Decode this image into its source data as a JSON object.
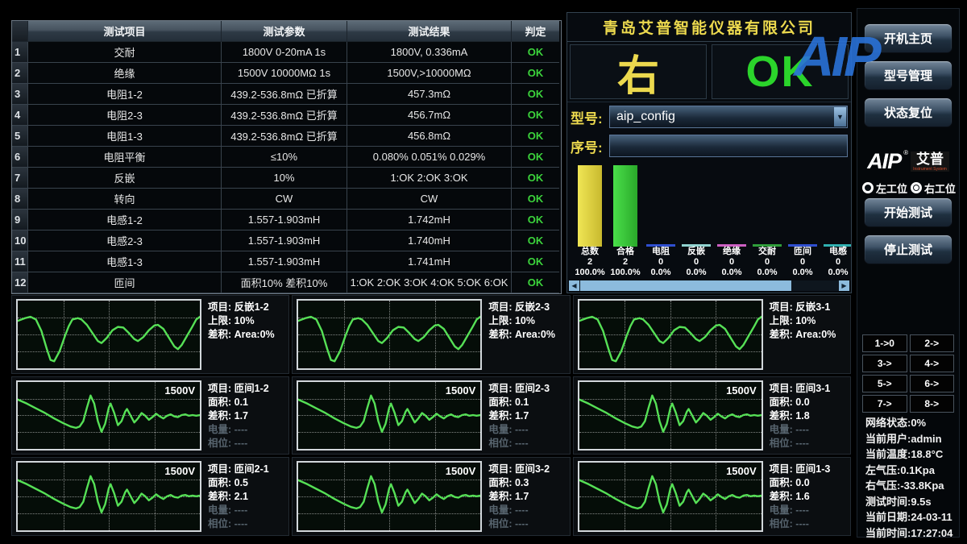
{
  "table": {
    "headers": [
      "测试项目",
      "测试参数",
      "测试结果",
      "判定"
    ],
    "rows": [
      {
        "num": "1",
        "item": "交耐",
        "param": "1800V 0-20mA 1s",
        "result": "1800V, 0.336mA",
        "judge": "OK"
      },
      {
        "num": "2",
        "item": "绝缘",
        "param": "1500V 10000MΩ 1s",
        "result": "1500V,>10000MΩ",
        "judge": "OK"
      },
      {
        "num": "3",
        "item": "电阻1-2",
        "param": "439.2-536.8mΩ 已折算",
        "result": "457.3mΩ",
        "judge": "OK"
      },
      {
        "num": "4",
        "item": "电阻2-3",
        "param": "439.2-536.8mΩ 已折算",
        "result": "456.7mΩ",
        "judge": "OK"
      },
      {
        "num": "5",
        "item": "电阻1-3",
        "param": "439.2-536.8mΩ 已折算",
        "result": "456.8mΩ",
        "judge": "OK"
      },
      {
        "num": "6",
        "item": "电阻平衡",
        "param": "≤10%",
        "result": "0.080% 0.051% 0.029%",
        "judge": "OK"
      },
      {
        "num": "7",
        "item": "反嵌",
        "param": "10%",
        "result": "1:OK 2:OK 3:OK",
        "judge": "OK"
      },
      {
        "num": "8",
        "item": "转向",
        "param": "CW",
        "result": "CW",
        "judge": "OK"
      },
      {
        "num": "9",
        "item": "电感1-2",
        "param": "1.557-1.903mH",
        "result": "1.742mH",
        "judge": "OK"
      },
      {
        "num": "10",
        "item": "电感2-3",
        "param": "1.557-1.903mH",
        "result": "1.740mH",
        "judge": "OK"
      },
      {
        "num": "11",
        "item": "电感1-3",
        "param": "1.557-1.903mH",
        "result": "1.741mH",
        "judge": "OK"
      },
      {
        "num": "12",
        "item": "匝间",
        "param": "面积10% 差积10%",
        "result": "1:OK 2:OK 3:OK 4:OK 5:OK 6:OK",
        "judge": "OK"
      }
    ]
  },
  "panel": {
    "company": "青岛艾普智能仪器有限公司",
    "station": "右",
    "result": "OK",
    "model_label": "型号:",
    "model_value": "aip_config",
    "serial_label": "序号:",
    "watermark": "AIP",
    "accent_yellow": "#ecd94e",
    "accent_green": "#2bd42b"
  },
  "stats": {
    "columns": [
      {
        "label": "总数",
        "count": "2",
        "percent": "100.0%",
        "color": "#f0e655",
        "color2": "#c8b92e",
        "full": true
      },
      {
        "label": "合格",
        "count": "2",
        "percent": "100.0%",
        "color": "#4ae04a",
        "color2": "#2aa82a",
        "full": true
      },
      {
        "label": "电阻",
        "count": "0",
        "percent": "0.0%",
        "color": "#2f4fd0",
        "full": false
      },
      {
        "label": "反嵌",
        "count": "0",
        "percent": "0.0%",
        "color": "#8fd2cf",
        "full": false
      },
      {
        "label": "绝缘",
        "count": "0",
        "percent": "0.0%",
        "color": "#cc5fc2",
        "full": false
      },
      {
        "label": "交耐",
        "count": "0",
        "percent": "0.0%",
        "color": "#2f9e3a",
        "full": false
      },
      {
        "label": "匝间",
        "count": "0",
        "percent": "0.0%",
        "color": "#2f4fd0",
        "full": false
      },
      {
        "label": "电感",
        "count": "0",
        "percent": "0.0%",
        "color": "#2fb0b0",
        "full": false
      }
    ]
  },
  "sidebar": {
    "buttons_top": [
      {
        "label": "开机主页",
        "name": "home-button"
      },
      {
        "label": "型号管理",
        "name": "model-manage-button"
      },
      {
        "label": "状态复位",
        "name": "status-reset-button"
      }
    ],
    "logo": {
      "aip": "AIP",
      "reg": "®",
      "cn": "艾普",
      "sub": "Instrument System"
    },
    "radios": [
      {
        "label": "左工位",
        "selected": false,
        "name": "station-radio-left"
      },
      {
        "label": "右工位",
        "selected": true,
        "name": "station-radio-right"
      }
    ],
    "buttons_test": [
      {
        "label": "开始测试",
        "name": "start-test-button"
      },
      {
        "label": "停止测试",
        "name": "stop-test-button"
      }
    ],
    "mapping": [
      "1->0",
      "2->",
      "3->",
      "4->",
      "5->",
      "6->",
      "7->",
      "8->"
    ],
    "status_lines": [
      "网络状态:0%",
      "当前用户:admin",
      "当前温度:18.8°C",
      "左气压:0.1Kpa",
      "右气压:-33.8Kpa",
      "测试时间:9.5s",
      "当前日期:24-03-11",
      "当前时间:17:27:04"
    ]
  },
  "charts": [
    {
      "shape": "fanqian",
      "voltage": "",
      "fields": [
        {
          "k": "项目:",
          "v": "反嵌1-2"
        },
        {
          "k": "上限:",
          "v": "10%"
        },
        {
          "k": "差积:",
          "v": "Area:0%"
        }
      ]
    },
    {
      "shape": "fanqian",
      "voltage": "",
      "fields": [
        {
          "k": "项目:",
          "v": "反嵌2-3"
        },
        {
          "k": "上限:",
          "v": "10%"
        },
        {
          "k": "差积:",
          "v": "Area:0%"
        }
      ]
    },
    {
      "shape": "fanqian",
      "voltage": "",
      "fields": [
        {
          "k": "项目:",
          "v": "反嵌3-1"
        },
        {
          "k": "上限:",
          "v": "10%"
        },
        {
          "k": "差积:",
          "v": "Area:0%"
        }
      ]
    },
    {
      "shape": "zhajian",
      "voltage": "1500V",
      "fields": [
        {
          "k": "项目:",
          "v": "匝间1-2"
        },
        {
          "k": "面积:",
          "v": "0.1"
        },
        {
          "k": "差积:",
          "v": "1.7"
        },
        {
          "k": "电量:",
          "v": "----",
          "dim": true
        },
        {
          "k": "相位:",
          "v": "----",
          "dim": true
        }
      ]
    },
    {
      "shape": "zhajian",
      "voltage": "1500V",
      "fields": [
        {
          "k": "项目:",
          "v": "匝间2-3"
        },
        {
          "k": "面积:",
          "v": "0.1"
        },
        {
          "k": "差积:",
          "v": "1.7"
        },
        {
          "k": "电量:",
          "v": "----",
          "dim": true
        },
        {
          "k": "相位:",
          "v": "----",
          "dim": true
        }
      ]
    },
    {
      "shape": "zhajian",
      "voltage": "1500V",
      "fields": [
        {
          "k": "项目:",
          "v": "匝间3-1"
        },
        {
          "k": "面积:",
          "v": "0.0"
        },
        {
          "k": "差积:",
          "v": "1.8"
        },
        {
          "k": "电量:",
          "v": "----",
          "dim": true
        },
        {
          "k": "相位:",
          "v": "----",
          "dim": true
        }
      ]
    },
    {
      "shape": "zhajian",
      "voltage": "1500V",
      "fields": [
        {
          "k": "项目:",
          "v": "匝间2-1"
        },
        {
          "k": "面积:",
          "v": "0.5"
        },
        {
          "k": "差积:",
          "v": "2.1"
        },
        {
          "k": "电量:",
          "v": "----",
          "dim": true
        },
        {
          "k": "相位:",
          "v": "----",
          "dim": true
        }
      ]
    },
    {
      "shape": "zhajian",
      "voltage": "1500V",
      "fields": [
        {
          "k": "项目:",
          "v": "匝间3-2"
        },
        {
          "k": "面积:",
          "v": "0.3"
        },
        {
          "k": "差积:",
          "v": "1.7"
        },
        {
          "k": "电量:",
          "v": "----",
          "dim": true
        },
        {
          "k": "相位:",
          "v": "----",
          "dim": true
        }
      ]
    },
    {
      "shape": "zhajian",
      "voltage": "1500V",
      "fields": [
        {
          "k": "项目:",
          "v": "匝间1-3"
        },
        {
          "k": "面积:",
          "v": "0.0"
        },
        {
          "k": "差积:",
          "v": "1.6"
        },
        {
          "k": "电量:",
          "v": "----",
          "dim": true
        },
        {
          "k": "相位:",
          "v": "----",
          "dim": true
        }
      ]
    }
  ],
  "waveforms": {
    "stroke_color": "#56e056",
    "fanqian": [
      [
        0,
        30
      ],
      [
        4,
        26
      ],
      [
        7,
        24
      ],
      [
        10,
        28
      ],
      [
        13,
        45
      ],
      [
        16,
        72
      ],
      [
        18,
        88
      ],
      [
        20,
        90
      ],
      [
        23,
        75
      ],
      [
        26,
        52
      ],
      [
        28,
        38
      ],
      [
        30,
        28
      ],
      [
        33,
        26
      ],
      [
        35,
        28
      ],
      [
        38,
        36
      ],
      [
        41,
        48
      ],
      [
        44,
        60
      ],
      [
        46,
        63
      ],
      [
        49,
        55
      ],
      [
        52,
        44
      ],
      [
        55,
        39
      ],
      [
        58,
        40
      ],
      [
        61,
        48
      ],
      [
        64,
        57
      ],
      [
        66,
        60
      ],
      [
        69,
        54
      ],
      [
        72,
        44
      ],
      [
        75,
        37
      ],
      [
        77,
        36
      ],
      [
        80,
        42
      ],
      [
        83,
        55
      ],
      [
        86,
        68
      ],
      [
        88,
        72
      ],
      [
        90,
        66
      ],
      [
        93,
        52
      ],
      [
        96,
        38
      ],
      [
        98,
        28
      ],
      [
        100,
        24
      ]
    ],
    "zhajian": [
      [
        0,
        26
      ],
      [
        5,
        32
      ],
      [
        10,
        39
      ],
      [
        15,
        46
      ],
      [
        20,
        54
      ],
      [
        25,
        61
      ],
      [
        29,
        66
      ],
      [
        32,
        68
      ],
      [
        34,
        66
      ],
      [
        36,
        58
      ],
      [
        38,
        38
      ],
      [
        40,
        20
      ],
      [
        42,
        32
      ],
      [
        44,
        58
      ],
      [
        46,
        74
      ],
      [
        48,
        62
      ],
      [
        50,
        38
      ],
      [
        51,
        32
      ],
      [
        53,
        46
      ],
      [
        55,
        64
      ],
      [
        57,
        58
      ],
      [
        59,
        44
      ],
      [
        60,
        40
      ],
      [
        62,
        50
      ],
      [
        64,
        60
      ],
      [
        66,
        54
      ],
      [
        68,
        46
      ],
      [
        70,
        50
      ],
      [
        72,
        56
      ],
      [
        74,
        52
      ],
      [
        76,
        47
      ],
      [
        78,
        51
      ],
      [
        80,
        54
      ],
      [
        82,
        50
      ],
      [
        84,
        48
      ],
      [
        86,
        51
      ],
      [
        88,
        52
      ],
      [
        90,
        49
      ],
      [
        92,
        48
      ],
      [
        94,
        50
      ],
      [
        96,
        49
      ],
      [
        98,
        50
      ],
      [
        100,
        49
      ]
    ]
  }
}
